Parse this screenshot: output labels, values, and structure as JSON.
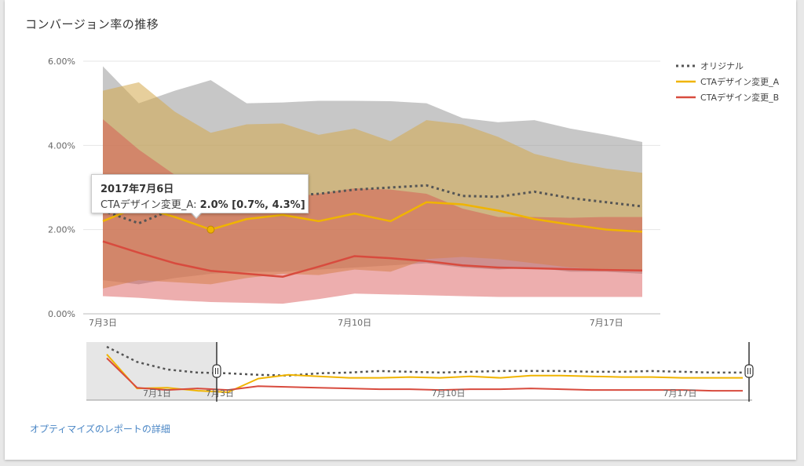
{
  "card": {
    "title": "コンバージョン率の推移",
    "link_label": "オプティマイズのレポートの詳細"
  },
  "tooltip": {
    "title": "2017年7月6日",
    "series_label": "CTAデザイン変更_A: ",
    "value": "2.0% [0.7%, 4.3%]"
  },
  "colors": {
    "original": "#555555",
    "variant_a": "#f0b400",
    "variant_b": "#d84b3e",
    "band_original": "#999999",
    "band_a": "#d4a84a",
    "band_b": "#d84b4b",
    "gridline": "#e6e6e6",
    "navigator_window": "#e6e6e6"
  },
  "chart_data": {
    "type": "line",
    "title": "コンバージョン率の推移",
    "xlabel": "",
    "ylabel": "",
    "x": [
      "2017-07-03",
      "2017-07-04",
      "2017-07-05",
      "2017-07-06",
      "2017-07-07",
      "2017-07-08",
      "2017-07-09",
      "2017-07-10",
      "2017-07-11",
      "2017-07-12",
      "2017-07-13",
      "2017-07-14",
      "2017-07-15",
      "2017-07-16",
      "2017-07-17",
      "2017-07-18"
    ],
    "x_ticks": [
      "7月3日",
      "7月10日",
      "7月17日"
    ],
    "y_ticks": [
      "0.00%",
      "2.00%",
      "4.00%",
      "6.00%"
    ],
    "ylim": [
      0,
      6
    ],
    "legend_position": "top-right",
    "series": [
      {
        "name": "オリジナル",
        "style": "dotted",
        "values": [
          2.45,
          2.15,
          2.5,
          2.55,
          2.75,
          2.8,
          2.85,
          2.95,
          3.0,
          3.05,
          2.8,
          2.78,
          2.9,
          2.75,
          2.65,
          2.55
        ],
        "upper": [
          5.88,
          5.0,
          5.3,
          5.55,
          5.0,
          5.02,
          5.06,
          5.06,
          5.05,
          5.0,
          4.65,
          4.55,
          4.6,
          4.4,
          4.25,
          4.08
        ],
        "lower": [
          0.8,
          0.7,
          0.85,
          0.95,
          1.0,
          1.0,
          1.05,
          1.1,
          1.15,
          1.2,
          1.1,
          1.05,
          1.1,
          1.0,
          1.0,
          0.95
        ]
      },
      {
        "name": "CTAデザイン変更_A",
        "style": "solid",
        "values": [
          2.2,
          2.55,
          2.3,
          2.0,
          2.25,
          2.35,
          2.2,
          2.38,
          2.2,
          2.65,
          2.6,
          2.45,
          2.25,
          2.12,
          2.0,
          1.95
        ],
        "upper": [
          5.3,
          5.5,
          4.8,
          4.3,
          4.5,
          4.52,
          4.25,
          4.4,
          4.1,
          4.6,
          4.5,
          4.2,
          3.8,
          3.6,
          3.45,
          3.35
        ],
        "lower": [
          0.6,
          0.8,
          0.75,
          0.7,
          0.85,
          0.95,
          0.92,
          1.05,
          1.0,
          1.3,
          1.35,
          1.3,
          1.2,
          1.1,
          1.05,
          1.0
        ]
      },
      {
        "name": "CTAデザイン変更_B",
        "style": "solid",
        "values": [
          1.72,
          1.45,
          1.2,
          1.02,
          0.95,
          0.88,
          1.12,
          1.37,
          1.32,
          1.25,
          1.15,
          1.1,
          1.08,
          1.06,
          1.04,
          1.03
        ],
        "upper": [
          4.62,
          3.9,
          3.3,
          2.8,
          2.7,
          2.75,
          2.85,
          2.98,
          2.95,
          2.85,
          2.5,
          2.3,
          2.3,
          2.28,
          2.3,
          2.3
        ],
        "lower": [
          0.42,
          0.38,
          0.32,
          0.28,
          0.26,
          0.24,
          0.35,
          0.48,
          0.46,
          0.44,
          0.42,
          0.4,
          0.4,
          0.4,
          0.4,
          0.4
        ]
      }
    ],
    "highlight": {
      "series": "CTAデザイン変更_A",
      "date": "2017-07-06",
      "value": 2.0,
      "ci": [
        0.7,
        4.3
      ]
    },
    "navigator": {
      "x_ticks": [
        "7月1日",
        "7月3日",
        "7月10日",
        "7月17日"
      ],
      "x": [
        "2017-06-30",
        "2017-07-01",
        "2017-07-02",
        "2017-07-03",
        "2017-07-04",
        "2017-07-05",
        "2017-07-06",
        "2017-07-07",
        "2017-07-08",
        "2017-07-09",
        "2017-07-10",
        "2017-07-11",
        "2017-07-12",
        "2017-07-13",
        "2017-07-14",
        "2017-07-15",
        "2017-07-16",
        "2017-07-17",
        "2017-07-18",
        "2017-07-19",
        "2017-07-20",
        "2017-07-21"
      ],
      "series": [
        {
          "name": "オリジナル",
          "values": [
            6.0,
            4.0,
            3.0,
            2.6,
            2.5,
            2.3,
            2.2,
            2.5,
            2.6,
            2.8,
            2.7,
            2.6,
            2.7,
            2.8,
            2.8,
            2.8,
            2.7,
            2.7,
            2.8,
            2.7,
            2.6,
            2.6
          ]
        },
        {
          "name": "CTAデザイン変更_A",
          "values": [
            5.0,
            0.5,
            0.6,
            0.2,
            0.0,
            1.8,
            2.3,
            2.1,
            1.9,
            1.9,
            2.0,
            1.9,
            2.1,
            1.9,
            2.2,
            2.2,
            2.1,
            2.0,
            2.0,
            1.9,
            1.9,
            1.9
          ]
        },
        {
          "name": "CTAデザイン変更_B",
          "values": [
            4.5,
            0.6,
            0.3,
            0.5,
            0.3,
            0.8,
            0.7,
            0.6,
            0.5,
            0.4,
            0.4,
            0.3,
            0.4,
            0.4,
            0.5,
            0.4,
            0.3,
            0.3,
            0.3,
            0.3,
            0.2,
            0.2
          ]
        }
      ]
    }
  }
}
